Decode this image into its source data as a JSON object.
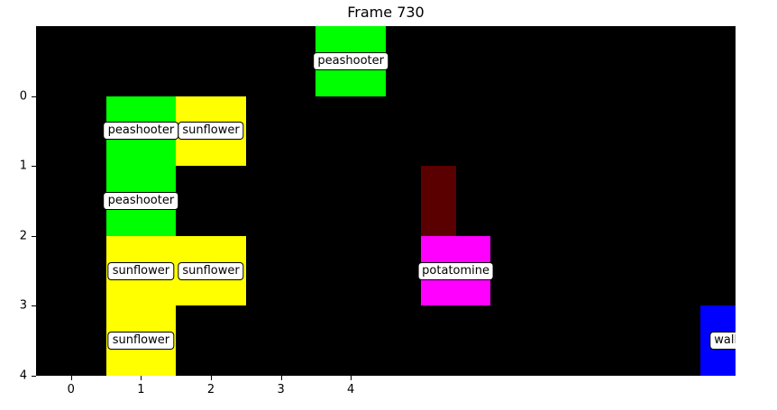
{
  "title": "Frame 730",
  "grid": {
    "cols": 10,
    "rows": 5,
    "row_offset": -1
  },
  "x_ticks": [
    "0",
    "1",
    "2",
    "3",
    "4"
  ],
  "y_ticks": [
    "0",
    "1",
    "2",
    "3",
    "4"
  ],
  "plant_colors": {
    "peashooter": "#00ff00",
    "sunflower": "#ffff00",
    "potatomine": "#ff00ff",
    "wallnut": "#0000ff",
    "zombie": "#5a0000"
  },
  "plants": [
    {
      "type": "peashooter",
      "label": "peashooter",
      "col": 4,
      "row": -1
    },
    {
      "type": "peashooter",
      "label": "peashooter",
      "col": 1,
      "row": 0
    },
    {
      "type": "sunflower",
      "label": "sunflower",
      "col": 2,
      "row": 0
    },
    {
      "type": "peashooter",
      "label": "peashooter",
      "col": 1,
      "row": 1
    },
    {
      "type": "sunflower",
      "label": "sunflower",
      "col": 1,
      "row": 2
    },
    {
      "type": "sunflower",
      "label": "sunflower",
      "col": 2,
      "row": 2
    },
    {
      "type": "potatomine",
      "label": "potatomine",
      "col": 5.5,
      "row": 2
    },
    {
      "type": "sunflower",
      "label": "sunflower",
      "col": 1,
      "row": 3
    },
    {
      "type": "wallnut",
      "label": "wallnut",
      "col": 9.5,
      "row": 3
    }
  ],
  "zombies": [
    {
      "col": 5.5,
      "row": 1,
      "width": 0.5
    },
    {
      "col": 10.0,
      "row": 0,
      "width": 0.5
    }
  ]
}
